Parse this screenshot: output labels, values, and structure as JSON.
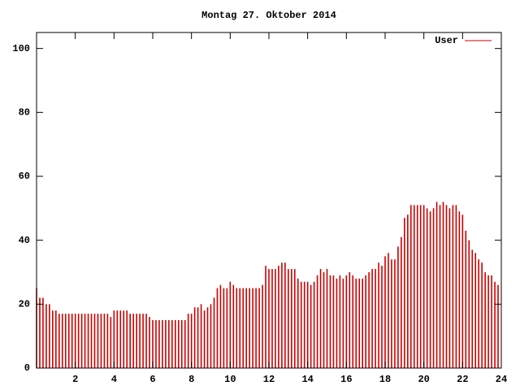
{
  "chart_data": {
    "type": "impulse",
    "title": "Montag 27. Oktober 2014",
    "series": [
      {
        "name": "User",
        "color": "#cc0000",
        "values": [
          25,
          22,
          22,
          20,
          20,
          18,
          18,
          17,
          17,
          17,
          17,
          17,
          17,
          17,
          17,
          17,
          17,
          17,
          17,
          17,
          17,
          17,
          17,
          16,
          18,
          18,
          18,
          18,
          18,
          17,
          17,
          17,
          17,
          17,
          17,
          16,
          15,
          15,
          15,
          15,
          15,
          15,
          15,
          15,
          15,
          15,
          15,
          17,
          17,
          19,
          19,
          20,
          18,
          19,
          20,
          22,
          25,
          26,
          25,
          25,
          27,
          26,
          25,
          25,
          25,
          25,
          25,
          25,
          25,
          25,
          26,
          32,
          31,
          31,
          31,
          32,
          33,
          33,
          31,
          31,
          31,
          28,
          27,
          27,
          27,
          26,
          27,
          29,
          31,
          30,
          31,
          29,
          29,
          28,
          29,
          28,
          29,
          30,
          29,
          28,
          28,
          28,
          29,
          30,
          31,
          31,
          33,
          32,
          35,
          36,
          34,
          34,
          38,
          41,
          47,
          48,
          51,
          51,
          51,
          51,
          51,
          50,
          49,
          50,
          52,
          51,
          52,
          51,
          50,
          51,
          51,
          49,
          48,
          43,
          40,
          37,
          36,
          34,
          33,
          30,
          29,
          29,
          27,
          26
        ]
      }
    ],
    "x": [
      0,
      0.167,
      0.333,
      0.5,
      0.667,
      0.833,
      1,
      1.167,
      1.333,
      1.5,
      1.667,
      1.833,
      2,
      2.167,
      2.333,
      2.5,
      2.667,
      2.833,
      3,
      3.167,
      3.333,
      3.5,
      3.667,
      3.833,
      4,
      4.167,
      4.333,
      4.5,
      4.667,
      4.833,
      5,
      5.167,
      5.333,
      5.5,
      5.667,
      5.833,
      6,
      6.167,
      6.333,
      6.5,
      6.667,
      6.833,
      7,
      7.167,
      7.333,
      7.5,
      7.667,
      7.833,
      8,
      8.167,
      8.333,
      8.5,
      8.667,
      8.833,
      9,
      9.167,
      9.333,
      9.5,
      9.667,
      9.833,
      10,
      10.167,
      10.333,
      10.5,
      10.667,
      10.833,
      11,
      11.167,
      11.333,
      11.5,
      11.667,
      11.833,
      12,
      12.167,
      12.333,
      12.5,
      12.667,
      12.833,
      13,
      13.167,
      13.333,
      13.5,
      13.667,
      13.833,
      14,
      14.167,
      14.333,
      14.5,
      14.667,
      14.833,
      15,
      15.167,
      15.333,
      15.5,
      15.667,
      15.833,
      16,
      16.167,
      16.333,
      16.5,
      16.667,
      16.833,
      17,
      17.167,
      17.333,
      17.5,
      17.667,
      17.833,
      18,
      18.167,
      18.333,
      18.5,
      18.667,
      18.833,
      19,
      19.167,
      19.333,
      19.5,
      19.667,
      19.833,
      20,
      20.167,
      20.333,
      20.5,
      20.667,
      20.833,
      21,
      21.167,
      21.333,
      21.5,
      21.667,
      21.833,
      22,
      22.167,
      22.333,
      22.5,
      22.667,
      22.833,
      23,
      23.167,
      23.333,
      23.5,
      23.667,
      23.833
    ],
    "xlim": [
      0,
      24
    ],
    "xticks": [
      2,
      4,
      6,
      8,
      10,
      12,
      14,
      16,
      18,
      20,
      22,
      24
    ],
    "ylim": [
      0,
      105
    ],
    "yticks": [
      0,
      20,
      40,
      60,
      80,
      100
    ],
    "legend": "top-right"
  }
}
